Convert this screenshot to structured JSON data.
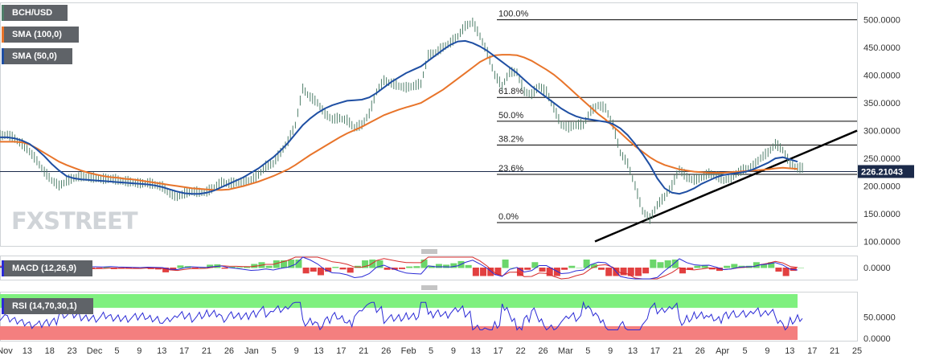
{
  "legend": {
    "symbol": "BCH/USD",
    "sma100": "SMA (100,0)",
    "sma50": "SMA (50,0)",
    "macd": "MACD (12,26,9)",
    "rsi": "RSI (14,70,30,1)"
  },
  "watermark": {
    "fx": "FX",
    "street": "STREET"
  },
  "colors": {
    "price": "#4f7f6a",
    "sma100": "#e8742a",
    "sma50": "#1f4fa3",
    "trendline": "#000000",
    "rsi_overbought_band": "#7ff07f",
    "rsi_oversold_band": "#f47f7f",
    "rsi_line": "#2b2bd6",
    "macd_line": "#2b2bd6",
    "macd_signal": "#d62b2b",
    "hist_pos": "#6bd66b",
    "hist_neg": "#e24040"
  },
  "chart_data": [
    {
      "type": "line",
      "name": "price",
      "yticks": [
        "500.0000",
        "450.0000",
        "400.0000",
        "350.0000",
        "300.0000",
        "250.0000",
        "200.0000",
        "150.0000",
        "100.0000"
      ],
      "ylim": [
        92,
        530
      ],
      "current_price": "226.21043",
      "fib_levels": [
        {
          "label": "100.0%",
          "value": 500
        },
        {
          "label": "61.8%",
          "value": 360
        },
        {
          "label": "50.0%",
          "value": 317
        },
        {
          "label": "38.2%",
          "value": 274
        },
        {
          "label": "23.6%",
          "value": 221
        },
        {
          "label": "0.0%",
          "value": 134
        }
      ],
      "xticks": [
        "Nov",
        "13",
        "18",
        "23",
        "Dec",
        "5",
        "9",
        "13",
        "17",
        "21",
        "26",
        "Jan",
        "5",
        "9",
        "13",
        "17",
        "21",
        "26",
        "Feb",
        "5",
        "9",
        "13",
        "17",
        "22",
        "26",
        "Mar",
        "5",
        "9",
        "13",
        "17",
        "21",
        "26",
        "Apr",
        "5",
        "9",
        "13",
        "17",
        "21",
        "25"
      ],
      "series": [
        {
          "name": "price",
          "values": [
            290,
            292,
            285,
            275,
            262,
            245,
            225,
            210,
            200,
            208,
            214,
            217,
            215,
            214,
            212,
            213,
            210,
            208,
            206,
            204,
            205,
            202,
            198,
            186,
            180,
            186,
            190,
            188,
            189,
            197,
            206,
            204,
            206,
            207,
            210,
            220,
            235,
            240,
            260,
            280,
            310,
            375,
            360,
            350,
            330,
            320,
            322,
            318,
            305,
            310,
            330,
            370,
            390,
            385,
            380,
            377,
            380,
            384,
            435,
            440,
            450,
            458,
            470,
            488,
            495,
            470,
            440,
            400,
            380,
            405,
            405,
            370,
            365,
            380,
            370,
            340,
            310,
            305,
            310,
            310,
            335,
            345,
            340,
            310,
            260,
            240,
            200,
            155,
            140,
            165,
            180,
            200,
            230,
            215,
            210,
            215,
            222,
            218,
            210,
            215,
            225,
            230,
            235,
            250,
            260,
            275,
            265,
            240,
            232
          ]
        },
        {
          "name": "sma100",
          "values": [
            280,
            280,
            280,
            279,
            275,
            268,
            260,
            252,
            244,
            238,
            233,
            228,
            224,
            221,
            218,
            216,
            215,
            213,
            212,
            210,
            208,
            206,
            204,
            202,
            200,
            198,
            196,
            195,
            194,
            193,
            193,
            194,
            197,
            200,
            204,
            208,
            213,
            218,
            224,
            230,
            238,
            247,
            256,
            264,
            272,
            280,
            288,
            295,
            301,
            307,
            314,
            321,
            328,
            333,
            338,
            342,
            346,
            350,
            358,
            366,
            374,
            384,
            394,
            404,
            414,
            424,
            431,
            436,
            437,
            437,
            436,
            432,
            426,
            418,
            410,
            401,
            390,
            378,
            366,
            354,
            342,
            330,
            320,
            308,
            296,
            284,
            272,
            262,
            252,
            244,
            238,
            234,
            230,
            228,
            226,
            225,
            224,
            224,
            224,
            225,
            226,
            227,
            228,
            229,
            230,
            232,
            233,
            232,
            231
          ]
        },
        {
          "name": "sma50",
          "values": [
            288,
            288,
            286,
            282,
            276,
            266,
            254,
            240,
            228,
            218,
            214,
            212,
            211,
            210,
            209,
            208,
            207,
            206,
            205,
            204,
            203,
            201,
            198,
            194,
            190,
            187,
            186,
            186,
            188,
            192,
            198,
            204,
            210,
            216,
            224,
            232,
            242,
            252,
            264,
            278,
            294,
            310,
            322,
            332,
            340,
            346,
            350,
            354,
            355,
            356,
            360,
            368,
            378,
            388,
            396,
            404,
            410,
            416,
            426,
            436,
            446,
            455,
            461,
            462,
            458,
            452,
            444,
            434,
            424,
            414,
            404,
            392,
            380,
            370,
            360,
            350,
            340,
            332,
            326,
            322,
            320,
            318,
            316,
            312,
            304,
            292,
            276,
            258,
            238,
            214,
            196,
            188,
            186,
            190,
            196,
            204,
            210,
            216,
            220,
            222,
            224,
            226,
            230,
            236,
            242,
            250,
            252,
            248,
            244
          ]
        }
      ]
    },
    {
      "type": "line",
      "name": "macd",
      "yticks": [
        "0.0000"
      ],
      "note": "MACD oscillator panel"
    },
    {
      "type": "line",
      "name": "rsi",
      "yticks": [
        "50.0000",
        "0.0000"
      ],
      "bands": {
        "overbought": 70,
        "oversold": 30
      }
    }
  ]
}
